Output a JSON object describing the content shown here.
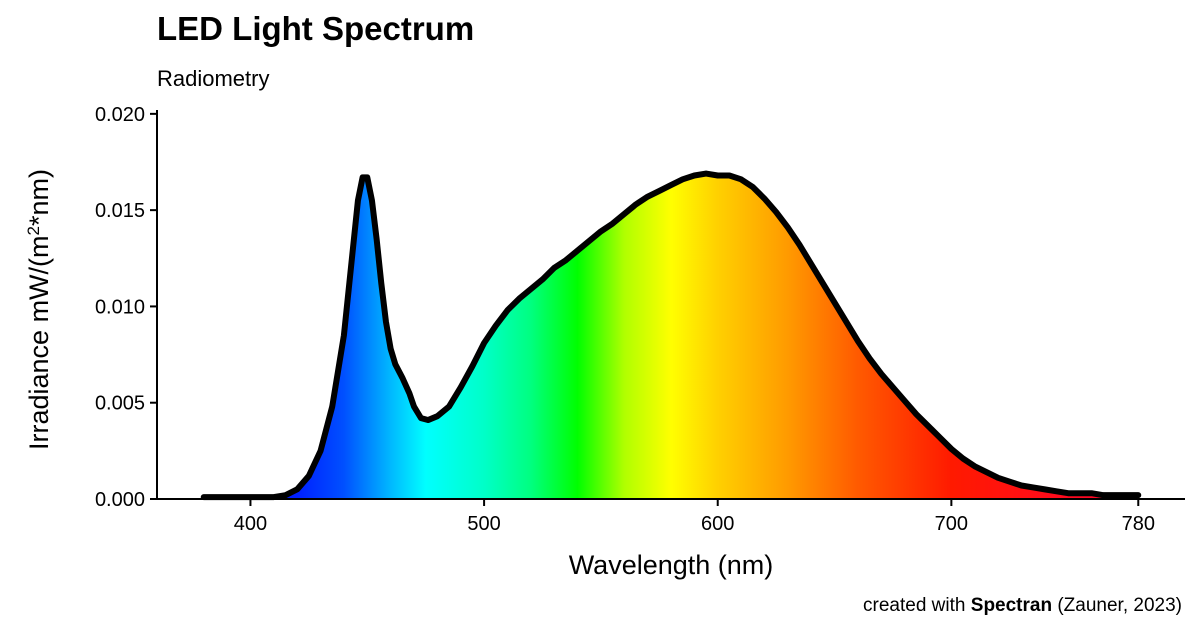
{
  "chart_data": {
    "type": "area",
    "title": "LED Light Spectrum",
    "subtitle": "Radiometry",
    "xlabel": "Wavelength (nm)",
    "ylabel_prefix": "Irradiance  mW/(m",
    "ylabel_sup": "2",
    "ylabel_suffix": "*nm)",
    "xlim": [
      360,
      800
    ],
    "ylim": [
      0,
      0.0202
    ],
    "x_ticks": [
      400,
      500,
      600,
      700,
      780
    ],
    "x_tick_labels": [
      "400",
      "500",
      "600",
      "700",
      "780"
    ],
    "y_ticks": [
      0,
      0.005,
      0.01,
      0.015,
      0.02
    ],
    "y_tick_labels": [
      "0.000",
      "0.005",
      "0.010",
      "0.015",
      "0.020"
    ],
    "fill": "wavelength-rainbow",
    "line_color": "#000000",
    "grid": false,
    "x": [
      380,
      390,
      400,
      410,
      415,
      420,
      425,
      430,
      435,
      440,
      443,
      446,
      448,
      450,
      452,
      454,
      456,
      458,
      460,
      462,
      465,
      468,
      470,
      473,
      476,
      480,
      485,
      490,
      495,
      500,
      505,
      510,
      515,
      520,
      525,
      530,
      535,
      540,
      545,
      550,
      555,
      560,
      565,
      570,
      575,
      580,
      585,
      590,
      595,
      600,
      605,
      610,
      615,
      620,
      625,
      630,
      635,
      640,
      645,
      650,
      655,
      660,
      665,
      670,
      675,
      680,
      685,
      690,
      695,
      700,
      705,
      710,
      715,
      720,
      725,
      730,
      735,
      740,
      745,
      750,
      755,
      760,
      765,
      770,
      775,
      780
    ],
    "y": [
      0.0001,
      0.0001,
      0.0001,
      0.0001,
      0.0002,
      0.0005,
      0.0012,
      0.0025,
      0.0048,
      0.0085,
      0.012,
      0.0155,
      0.0167,
      0.0167,
      0.0155,
      0.0135,
      0.0112,
      0.0092,
      0.0078,
      0.007,
      0.0063,
      0.0055,
      0.0048,
      0.0042,
      0.0041,
      0.0043,
      0.0048,
      0.0058,
      0.0069,
      0.0081,
      0.009,
      0.0098,
      0.0104,
      0.0109,
      0.0114,
      0.012,
      0.0124,
      0.0129,
      0.0134,
      0.0139,
      0.0143,
      0.0148,
      0.0153,
      0.0157,
      0.016,
      0.0163,
      0.0166,
      0.0168,
      0.0169,
      0.0168,
      0.0168,
      0.0166,
      0.0162,
      0.0156,
      0.0149,
      0.0141,
      0.0132,
      0.0122,
      0.0112,
      0.0102,
      0.0092,
      0.0082,
      0.0073,
      0.0065,
      0.0058,
      0.0051,
      0.0044,
      0.0038,
      0.0032,
      0.0026,
      0.0021,
      0.0017,
      0.0014,
      0.0011,
      0.0009,
      0.0007,
      0.0006,
      0.0005,
      0.0004,
      0.0003,
      0.0003,
      0.0003,
      0.0002,
      0.0002,
      0.0002,
      0.0002
    ]
  },
  "caption": {
    "prefix": "created with ",
    "bold": "Spectran",
    "suffix": " (Zauner, 2023)"
  }
}
